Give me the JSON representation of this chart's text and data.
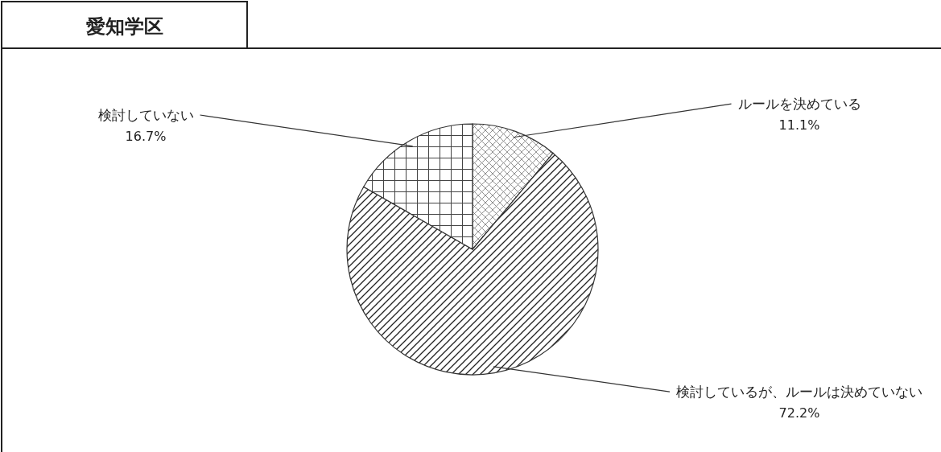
{
  "chart_data": {
    "type": "pie",
    "title": "愛知学区",
    "categories": [
      "ルールを決めている",
      "検討しているが、ルールは決めていない",
      "検討していない"
    ],
    "values": [
      11.1,
      72.2,
      16.7
    ],
    "value_labels": [
      "11.1%",
      "72.2%",
      "16.7%"
    ]
  }
}
